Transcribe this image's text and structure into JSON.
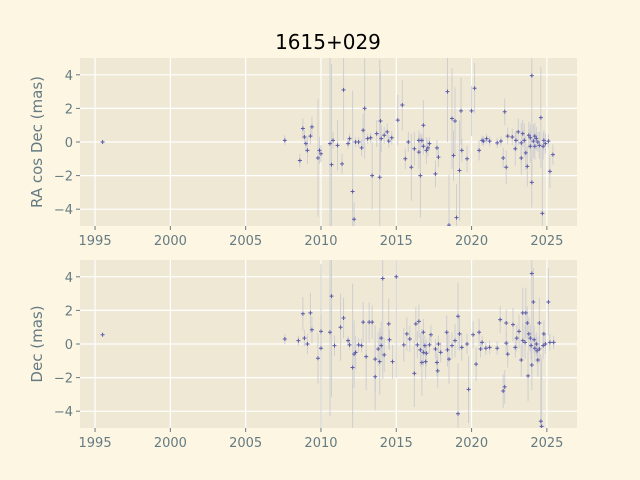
{
  "title": "1615+029",
  "colors": {
    "background": "#fdf6e3",
    "axes_bg": "#eee8d5",
    "grid": "#ffffff",
    "marker": "#5b5ba8",
    "errorbar": "#c8c8d0",
    "text": "#657b83"
  },
  "chart_data": [
    {
      "type": "scatter",
      "errorbars": true,
      "marker": "+",
      "xlabel": "",
      "ylabel": "RA cos Dec (mas)",
      "xlim": [
        1994,
        2027
      ],
      "ylim": [
        -5,
        5
      ],
      "grid": true,
      "xticks": [
        "1995",
        "2000",
        "2005",
        "2010",
        "2015",
        "2020",
        "2025"
      ],
      "yticks": [
        "-4",
        "-2",
        "0",
        "2",
        "4"
      ],
      "points": [
        [
          1995.5,
          0.0,
          0.1
        ],
        [
          2007.6,
          0.1,
          0.3
        ],
        [
          2008.6,
          -1.1,
          0.4
        ],
        [
          2008.8,
          0.8,
          0.6
        ],
        [
          2008.9,
          0.3,
          0.4
        ],
        [
          2009.0,
          -0.1,
          0.5
        ],
        [
          2009.1,
          -0.5,
          0.8
        ],
        [
          2009.3,
          0.35,
          0.5
        ],
        [
          2009.4,
          0.9,
          0.6
        ],
        [
          2009.8,
          -0.95,
          3.5
        ],
        [
          2009.9,
          -0.5,
          0.8
        ],
        [
          2010.0,
          -0.7,
          0.5
        ],
        [
          2010.6,
          -0.1,
          6
        ],
        [
          2010.7,
          -1.35,
          6
        ],
        [
          2010.8,
          0.1,
          0.5
        ],
        [
          2011.1,
          -0.2,
          1.5
        ],
        [
          2011.4,
          -1.3,
          0.6
        ],
        [
          2011.5,
          3.1,
          3
        ],
        [
          2011.8,
          -0.1,
          0.3
        ],
        [
          2011.9,
          0.2,
          0.3
        ],
        [
          2012.1,
          -2.95,
          6
        ],
        [
          2012.2,
          -4.6,
          1
        ],
        [
          2012.3,
          0.0,
          0.3
        ],
        [
          2012.5,
          0.0,
          0.3
        ],
        [
          2012.7,
          -0.35,
          0.5
        ],
        [
          2012.8,
          0.7,
          1
        ],
        [
          2012.9,
          2.0,
          3
        ],
        [
          2013.1,
          0.2,
          0.3
        ],
        [
          2013.3,
          0.25,
          0.3
        ],
        [
          2013.4,
          -2.0,
          2
        ],
        [
          2013.7,
          0.5,
          0.8
        ],
        [
          2013.9,
          -2.1,
          7
        ],
        [
          2013.95,
          1.25,
          3
        ],
        [
          2014.0,
          0.2,
          0.8
        ],
        [
          2014.2,
          0.4,
          0.5
        ],
        [
          2014.4,
          0.6,
          0.5
        ],
        [
          2014.5,
          0.05,
          0.4
        ],
        [
          2014.7,
          0.25,
          0.4
        ],
        [
          2015.1,
          1.3,
          1.5
        ],
        [
          2015.4,
          2.2,
          1.5
        ],
        [
          2015.6,
          -1.0,
          0.6
        ],
        [
          2015.8,
          0.0,
          0.6
        ],
        [
          2016.0,
          -1.5,
          2
        ],
        [
          2016.2,
          -0.4,
          1
        ],
        [
          2016.5,
          0.1,
          0.6
        ],
        [
          2016.5,
          -0.6,
          1
        ],
        [
          2016.6,
          -2.0,
          2.5
        ],
        [
          2016.7,
          0.1,
          0.4
        ],
        [
          2016.8,
          -0.25,
          0.5
        ],
        [
          2016.8,
          1.0,
          1.5
        ],
        [
          2017.0,
          -0.5,
          0.8
        ],
        [
          2017.1,
          -0.35,
          0.5
        ],
        [
          2017.2,
          -0.1,
          0.4
        ],
        [
          2017.6,
          -1.9,
          0.8
        ],
        [
          2017.7,
          -0.35,
          0.5
        ],
        [
          2017.8,
          -0.9,
          0.6
        ],
        [
          2018.4,
          3.0,
          3
        ],
        [
          2018.5,
          -4.95,
          3
        ],
        [
          2018.7,
          1.4,
          3
        ],
        [
          2018.8,
          -0.8,
          1.5
        ],
        [
          2018.9,
          1.25,
          2
        ],
        [
          2019.0,
          -4.5,
          2
        ],
        [
          2019.2,
          -1.7,
          3
        ],
        [
          2019.3,
          1.85,
          2
        ],
        [
          2019.35,
          -0.5,
          0.7
        ],
        [
          2019.7,
          -1.0,
          0.8
        ],
        [
          2020.0,
          1.85,
          1.5
        ],
        [
          2020.2,
          3.2,
          1.5
        ],
        [
          2020.5,
          -0.5,
          0.6
        ],
        [
          2020.7,
          0.1,
          0.3
        ],
        [
          2020.8,
          0.05,
          0.3
        ],
        [
          2021.0,
          0.2,
          0.3
        ],
        [
          2021.2,
          0.05,
          0.3
        ],
        [
          2021.7,
          -0.05,
          0.3
        ],
        [
          2021.95,
          0.05,
          0.3
        ],
        [
          2022.1,
          -0.95,
          0.6
        ],
        [
          2022.2,
          1.8,
          0.8
        ],
        [
          2022.3,
          -1.5,
          1
        ],
        [
          2022.4,
          0.35,
          0.5
        ],
        [
          2022.7,
          0.3,
          0.5
        ],
        [
          2022.9,
          -0.4,
          1
        ],
        [
          2022.95,
          0.1,
          0.6
        ],
        [
          2023.1,
          0.6,
          0.8
        ],
        [
          2023.3,
          -0.05,
          1.2
        ],
        [
          2023.3,
          -0.95,
          1
        ],
        [
          2023.4,
          0.5,
          0.8
        ],
        [
          2023.5,
          0.1,
          1
        ],
        [
          2023.6,
          -0.65,
          1
        ],
        [
          2023.7,
          -1.45,
          1.2
        ],
        [
          2023.8,
          0.4,
          0.8
        ],
        [
          2023.9,
          0.25,
          0.8
        ],
        [
          2023.9,
          -0.25,
          1
        ],
        [
          2024.0,
          3.95,
          6
        ],
        [
          2024.0,
          -2.4,
          1.5
        ],
        [
          2024.1,
          0.05,
          1
        ],
        [
          2024.2,
          0.35,
          0.8
        ],
        [
          2024.2,
          -0.25,
          0.8
        ],
        [
          2024.3,
          0.2,
          0.7
        ],
        [
          2024.4,
          0.0,
          0.6
        ],
        [
          2024.5,
          -0.2,
          0.8
        ],
        [
          2024.6,
          1.45,
          3
        ],
        [
          2024.7,
          -4.25,
          4
        ],
        [
          2024.75,
          -0.25,
          0.8
        ],
        [
          2024.8,
          0.1,
          0.6
        ],
        [
          2024.9,
          -0.1,
          0.6
        ],
        [
          2025.1,
          0.05,
          0.4
        ],
        [
          2025.2,
          -1.75,
          1
        ],
        [
          2025.4,
          -0.75,
          0.6
        ]
      ]
    },
    {
      "type": "scatter",
      "errorbars": true,
      "marker": "+",
      "xlabel": "",
      "ylabel": "Dec (mas)",
      "xlim": [
        1994,
        2027
      ],
      "ylim": [
        -5,
        5
      ],
      "grid": true,
      "xticks": [
        "1995",
        "2000",
        "2005",
        "2010",
        "2015",
        "2020",
        "2025"
      ],
      "yticks": [
        "-4",
        "-2",
        "0",
        "2",
        "4"
      ],
      "points": [
        [
          1995.5,
          0.55,
          0.1
        ],
        [
          2007.6,
          0.3,
          0.3
        ],
        [
          2008.5,
          0.2,
          0.3
        ],
        [
          2008.8,
          1.8,
          1
        ],
        [
          2008.9,
          0.35,
          0.5
        ],
        [
          2009.1,
          0.0,
          0.6
        ],
        [
          2009.3,
          1.85,
          1.2
        ],
        [
          2009.4,
          0.85,
          0.8
        ],
        [
          2009.8,
          -0.85,
          1.5
        ],
        [
          2010.0,
          -0.25,
          5
        ],
        [
          2010.0,
          0.75,
          1
        ],
        [
          2010.6,
          0.7,
          5
        ],
        [
          2010.7,
          2.85,
          6
        ],
        [
          2010.9,
          -0.1,
          0.6
        ],
        [
          2011.3,
          1.0,
          2
        ],
        [
          2011.5,
          1.55,
          1.2
        ],
        [
          2011.8,
          0.2,
          0.3
        ],
        [
          2011.9,
          -0.05,
          0.3
        ],
        [
          2012.1,
          -1.4,
          5
        ],
        [
          2012.2,
          -0.6,
          2
        ],
        [
          2012.3,
          -0.5,
          1
        ],
        [
          2012.5,
          -0.05,
          0.4
        ],
        [
          2012.7,
          -0.1,
          0.4
        ],
        [
          2012.8,
          1.3,
          1.2
        ],
        [
          2013.0,
          -0.75,
          2
        ],
        [
          2013.2,
          1.3,
          1.2
        ],
        [
          2013.4,
          1.3,
          1
        ],
        [
          2013.6,
          -0.9,
          2
        ],
        [
          2013.6,
          -1.95,
          2
        ],
        [
          2013.8,
          -0.3,
          1
        ],
        [
          2013.9,
          -1.05,
          2
        ],
        [
          2014.0,
          0.35,
          1
        ],
        [
          2014.0,
          -0.1,
          0.8
        ],
        [
          2014.1,
          3.9,
          6
        ],
        [
          2014.2,
          -0.65,
          1
        ],
        [
          2014.5,
          1.2,
          1.5
        ],
        [
          2014.55,
          0.25,
          0.6
        ],
        [
          2014.75,
          -1.05,
          1
        ],
        [
          2015.0,
          4.0,
          6
        ],
        [
          2015.5,
          -0.05,
          1
        ],
        [
          2015.7,
          0.6,
          1
        ],
        [
          2015.9,
          0.3,
          0.8
        ],
        [
          2016.2,
          -1.75,
          2
        ],
        [
          2016.3,
          1.2,
          1
        ],
        [
          2016.4,
          -0.05,
          0.8
        ],
        [
          2016.5,
          1.35,
          1
        ],
        [
          2016.6,
          -0.35,
          1
        ],
        [
          2016.7,
          -1.1,
          2
        ],
        [
          2016.8,
          0.7,
          0.8
        ],
        [
          2016.8,
          -0.5,
          0.8
        ],
        [
          2016.9,
          -0.1,
          0.6
        ],
        [
          2016.95,
          -1.05,
          1
        ],
        [
          2017.0,
          -0.55,
          0.8
        ],
        [
          2017.2,
          -0.05,
          0.5
        ],
        [
          2017.3,
          0.55,
          0.6
        ],
        [
          2017.6,
          -0.3,
          0.6
        ],
        [
          2017.7,
          -1.1,
          0.8
        ],
        [
          2017.75,
          -1.6,
          1
        ],
        [
          2017.8,
          0.0,
          0.5
        ],
        [
          2017.95,
          -0.5,
          0.6
        ],
        [
          2018.35,
          0.7,
          1
        ],
        [
          2018.4,
          -0.35,
          1
        ],
        [
          2018.5,
          -0.9,
          1.5
        ],
        [
          2018.7,
          -0.1,
          0.8
        ],
        [
          2018.9,
          0.2,
          1
        ],
        [
          2019.1,
          -4.15,
          3
        ],
        [
          2019.1,
          1.65,
          2
        ],
        [
          2019.2,
          0.6,
          1
        ],
        [
          2019.35,
          -0.2,
          0.8
        ],
        [
          2019.7,
          0.0,
          0.6
        ],
        [
          2019.8,
          -2.7,
          2
        ],
        [
          2020.1,
          0.55,
          0.8
        ],
        [
          2020.3,
          -1.2,
          1
        ],
        [
          2020.5,
          0.7,
          0.8
        ],
        [
          2020.6,
          -0.3,
          0.5
        ],
        [
          2020.7,
          0.1,
          0.4
        ],
        [
          2020.95,
          -0.25,
          0.4
        ],
        [
          2021.2,
          -0.2,
          0.4
        ],
        [
          2021.7,
          -0.25,
          0.4
        ],
        [
          2021.9,
          1.45,
          0.8
        ],
        [
          2022.1,
          -2.8,
          1
        ],
        [
          2022.2,
          -2.55,
          1
        ],
        [
          2022.3,
          0.05,
          0.6
        ],
        [
          2022.3,
          1.25,
          0.8
        ],
        [
          2022.4,
          -0.6,
          0.8
        ],
        [
          2022.75,
          1.15,
          1
        ],
        [
          2022.9,
          -0.2,
          0.6
        ],
        [
          2023.0,
          0.35,
          0.8
        ],
        [
          2023.15,
          0.75,
          1
        ],
        [
          2023.3,
          -0.95,
          1
        ],
        [
          2023.4,
          1.85,
          1.5
        ],
        [
          2023.4,
          0.2,
          1
        ],
        [
          2023.55,
          0.1,
          1
        ],
        [
          2023.6,
          1.85,
          1.5
        ],
        [
          2023.7,
          1.25,
          1
        ],
        [
          2023.75,
          -1.9,
          1.5
        ],
        [
          2023.8,
          0.6,
          1
        ],
        [
          2023.9,
          0.35,
          0.8
        ],
        [
          2023.95,
          -0.1,
          0.8
        ],
        [
          2024.0,
          4.2,
          6
        ],
        [
          2024.0,
          -1.25,
          1.5
        ],
        [
          2024.1,
          2.5,
          2
        ],
        [
          2024.15,
          0.25,
          0.8
        ],
        [
          2024.2,
          -0.25,
          0.8
        ],
        [
          2024.3,
          0.0,
          0.7
        ],
        [
          2024.35,
          -0.4,
          0.8
        ],
        [
          2024.4,
          -0.95,
          1
        ],
        [
          2024.5,
          1.25,
          1.5
        ],
        [
          2024.5,
          -0.3,
          0.8
        ],
        [
          2024.6,
          -4.6,
          4
        ],
        [
          2024.65,
          -4.9,
          4
        ],
        [
          2024.75,
          -0.1,
          0.8
        ],
        [
          2024.8,
          0.6,
          0.8
        ],
        [
          2024.9,
          0.0,
          0.6
        ],
        [
          2025.1,
          2.5,
          2
        ],
        [
          2025.2,
          0.1,
          0.5
        ],
        [
          2025.45,
          0.1,
          0.4
        ]
      ]
    }
  ]
}
